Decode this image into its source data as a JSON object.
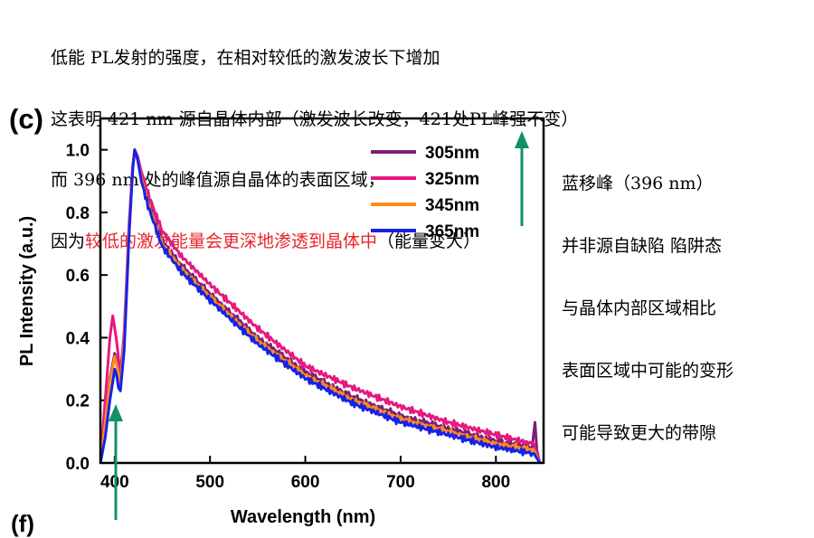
{
  "notes": {
    "line1": "低能 PL发射的强度，在相对较低的激发波长下增加",
    "line2": "这表明 421 nm 源自晶体内部（激发波长改变，421处PL峰强不变）",
    "line3": "而 396 nm 处的峰值源自晶体的表面区域，",
    "line4_prefix": "因为",
    "line4_red": "较低的激发能量会更深地渗透到晶体中",
    "line4_suffix": "（能量变大）"
  },
  "side_notes": {
    "line1": "蓝移峰（396 nm）",
    "line2": "并非源自缺陷 陷阱态",
    "line3": "与晶体内部区域相比",
    "line4": "表面区域中可能的变形",
    "line5": "可能导致更大的带隙"
  },
  "panel_label": "(c)",
  "next_panel_label": "(f)",
  "colors": {
    "arrow": "#12906a",
    "note_red": "#e8242b"
  },
  "chart_data": {
    "type": "line",
    "xlabel": "Wavelength (nm)",
    "ylabel": "PL Intensity (a.u.)",
    "xlim": [
      385,
      850
    ],
    "ylim": [
      0,
      1.1
    ],
    "xticks": [
      400,
      500,
      600,
      700,
      800
    ],
    "yticks": [
      "0.0",
      "0.2",
      "0.4",
      "0.6",
      "0.8",
      "1.0"
    ],
    "legend_position": "top-right",
    "series": [
      {
        "name": "305nm",
        "color": "#7b1f78",
        "x": [
          385,
          390,
          395,
          400,
          403,
          406,
          410,
          415,
          419,
          421,
          424,
          428,
          435,
          450,
          470,
          500,
          550,
          600,
          650,
          700,
          750,
          800,
          838,
          841,
          843,
          846,
          850
        ],
        "y": [
          0.0,
          0.14,
          0.27,
          0.35,
          0.31,
          0.25,
          0.4,
          0.75,
          0.95,
          1.0,
          0.97,
          0.91,
          0.84,
          0.71,
          0.63,
          0.54,
          0.4,
          0.29,
          0.21,
          0.15,
          0.11,
          0.07,
          0.05,
          0.13,
          0.04,
          0.0,
          0.0
        ]
      },
      {
        "name": "325nm",
        "color": "#e5197f",
        "x": [
          385,
          390,
          395,
          398,
          402,
          406,
          410,
          415,
          419,
          421,
          424,
          428,
          435,
          450,
          470,
          500,
          550,
          600,
          650,
          700,
          750,
          800,
          840,
          846,
          850
        ],
        "y": [
          0.0,
          0.2,
          0.4,
          0.47,
          0.39,
          0.28,
          0.42,
          0.76,
          0.95,
          1.0,
          0.98,
          0.93,
          0.86,
          0.74,
          0.66,
          0.57,
          0.43,
          0.31,
          0.24,
          0.18,
          0.13,
          0.09,
          0.06,
          0.0,
          0.0
        ]
      },
      {
        "name": "345nm",
        "color": "#ff8a1c",
        "x": [
          385,
          390,
          395,
          400,
          403,
          406,
          410,
          415,
          419,
          421,
          424,
          428,
          435,
          450,
          470,
          500,
          550,
          600,
          650,
          700,
          750,
          800,
          840,
          846,
          850
        ],
        "y": [
          0.0,
          0.13,
          0.26,
          0.34,
          0.3,
          0.25,
          0.39,
          0.74,
          0.94,
          1.0,
          0.97,
          0.91,
          0.83,
          0.7,
          0.62,
          0.53,
          0.39,
          0.28,
          0.2,
          0.14,
          0.1,
          0.06,
          0.04,
          0.0,
          0.0
        ]
      },
      {
        "name": "365nm",
        "color": "#1722e6",
        "x": [
          385,
          390,
          395,
          400,
          402,
          404,
          406,
          410,
          415,
          419,
          421,
          424,
          428,
          435,
          450,
          470,
          500,
          550,
          600,
          650,
          700,
          750,
          800,
          840,
          846,
          850
        ],
        "y": [
          0.0,
          0.08,
          0.2,
          0.3,
          0.28,
          0.24,
          0.23,
          0.36,
          0.72,
          0.94,
          1.0,
          0.97,
          0.9,
          0.82,
          0.69,
          0.61,
          0.52,
          0.38,
          0.27,
          0.19,
          0.13,
          0.09,
          0.05,
          0.03,
          0.0,
          0.0
        ]
      }
    ]
  }
}
